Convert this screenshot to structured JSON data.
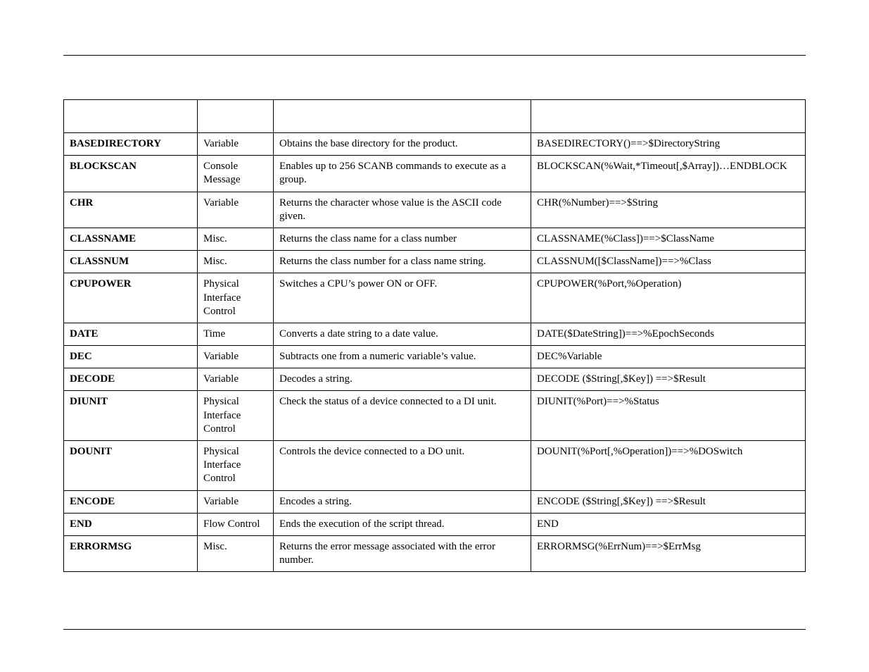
{
  "table": {
    "rows": [
      {
        "name": "BASEDIRECTORY",
        "category": "Variable",
        "description": "Obtains the base directory for the product.",
        "syntax": "BASEDIRECTORY()==>$DirectoryString"
      },
      {
        "name": "BLOCKSCAN",
        "category": "Console Message",
        "description": "Enables up to 256 SCANB commands to execute as a group.",
        "syntax": "BLOCKSCAN(%Wait,*Timeout[,$Array])…ENDBLOCK"
      },
      {
        "name": "CHR",
        "category": "Variable",
        "description": "Returns the character whose value is the ASCII code given.",
        "syntax": "CHR(%Number)==>$String"
      },
      {
        "name": "CLASSNAME",
        "category": "Misc.",
        "description": "Returns the class name for a class number",
        "syntax": "CLASSNAME(%Class])==>$ClassName"
      },
      {
        "name": "CLASSNUM",
        "category": "Misc.",
        "description": "Returns the class number for a class name string.",
        "syntax": "CLASSNUM([$ClassName])==>%Class"
      },
      {
        "name": "CPUPOWER",
        "category": "Physical Interface Control",
        "description": "Switches a CPU’s power ON or OFF.",
        "syntax": "CPUPOWER(%Port,%Operation)"
      },
      {
        "name": "DATE",
        "category": "Time",
        "description": "Converts a date string to a date value.",
        "syntax": "DATE($DateString])==>%EpochSeconds"
      },
      {
        "name": "DEC",
        "category": "Variable",
        "description": "Subtracts one from a numeric variable’s value.",
        "syntax": "DEC%Variable"
      },
      {
        "name": "DECODE",
        "category": "Variable",
        "description": "Decodes a string.",
        "syntax": "DECODE ($String[,$Key]) ==>$Result"
      },
      {
        "name": "DIUNIT",
        "category": "Physical Interface Control",
        "description": "Check the status of a device connected to a DI unit.",
        "syntax": "DIUNIT(%Port)==>%Status"
      },
      {
        "name": "DOUNIT",
        "category": "Physical Interface Control",
        "description": "Controls the device connected to a DO unit.",
        "syntax": "DOUNIT(%Port[,%Operation])==>%DOSwitch"
      },
      {
        "name": "ENCODE",
        "category": "Variable",
        "description": "Encodes a string.",
        "syntax": "ENCODE ($String[,$Key]) ==>$Result"
      },
      {
        "name": "END",
        "category": "Flow Control",
        "description": "Ends the execution of the script thread.",
        "syntax": "END"
      },
      {
        "name": "ERRORMSG",
        "category": "Misc.",
        "description": "Returns the error message associated with the error number.",
        "syntax": "ERRORMSG(%ErrNum)==>$ErrMsg"
      }
    ]
  }
}
